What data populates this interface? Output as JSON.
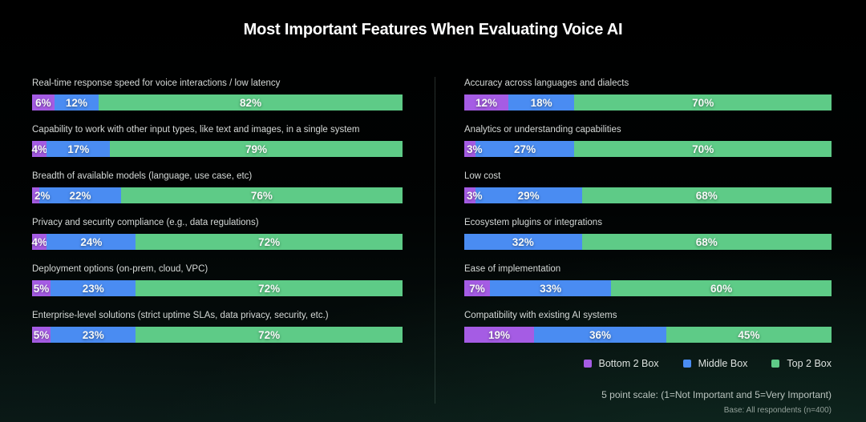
{
  "title": "Most Important Features When Evaluating Voice AI",
  "legend": [
    {
      "label": "Bottom 2 Box",
      "color": "#a55ce4"
    },
    {
      "label": "Middle Box",
      "color": "#4a8cf2"
    },
    {
      "label": "Top 2 Box",
      "color": "#5ecb87"
    }
  ],
  "footnotes": {
    "scale": "5 point scale: (1=Not Important and 5=Very Important)",
    "base": "Base: All respondents (n=400)"
  },
  "colors": {
    "bottom_2_box": "#a55ce4",
    "middle_box": "#4a8cf2",
    "top_2_box": "#5ecb87",
    "background_top": "#000000",
    "background_bottom": "#081311",
    "label_text": "#d5d9d7",
    "value_text": "#f6f8f7"
  },
  "chart_data": {
    "type": "bar",
    "orientation": "horizontal",
    "stacked": true,
    "value_format": "percent",
    "series_names": [
      "Bottom 2 Box",
      "Middle Box",
      "Top 2 Box"
    ],
    "title": "Most Important Features When Evaluating Voice AI",
    "columns": [
      {
        "rows": [
          {
            "label": "Real-time response speed for voice interactions / low latency",
            "values": [
              6,
              12,
              82
            ]
          },
          {
            "label": "Capability to work with other input types, like text and images, in a single system",
            "values": [
              4,
              17,
              79
            ]
          },
          {
            "label": "Breadth of available models (language, use case, etc)",
            "values": [
              2,
              22,
              76
            ]
          },
          {
            "label": "Privacy and security compliance (e.g., data regulations)",
            "values": [
              4,
              24,
              72
            ]
          },
          {
            "label": "Deployment options (on-prem, cloud, VPC)",
            "values": [
              5,
              23,
              72
            ]
          },
          {
            "label": "Enterprise-level solutions (strict uptime SLAs, data privacy, security, etc.)",
            "values": [
              5,
              23,
              72
            ]
          }
        ]
      },
      {
        "rows": [
          {
            "label": "Accuracy across languages and dialects",
            "values": [
              12,
              18,
              70
            ]
          },
          {
            "label": "Analytics or understanding capabilities",
            "values": [
              3,
              27,
              70
            ]
          },
          {
            "label": "Low cost",
            "values": [
              3,
              29,
              68
            ]
          },
          {
            "label": "Ecosystem plugins or integrations",
            "values": [
              0,
              32,
              68
            ]
          },
          {
            "label": "Ease of implementation",
            "values": [
              7,
              33,
              60
            ]
          },
          {
            "label": "Compatibility with existing AI systems",
            "values": [
              19,
              36,
              45
            ]
          }
        ]
      }
    ]
  }
}
